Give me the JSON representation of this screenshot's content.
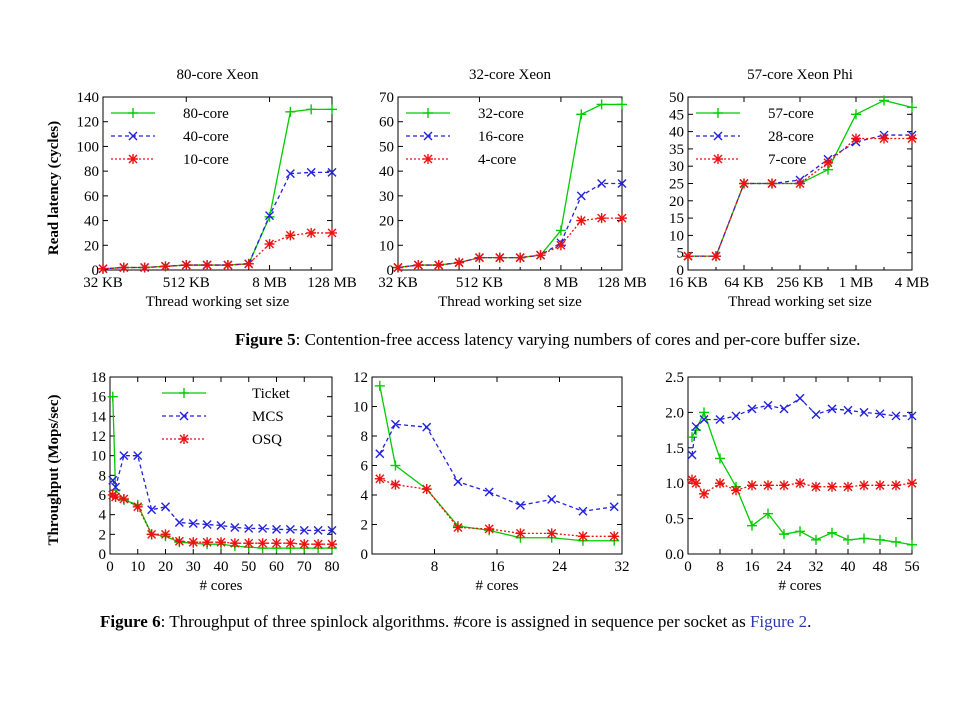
{
  "figure5": {
    "caption_label": "Figure 5",
    "caption_text": ": Contention-free access latency varying numbers of cores and per-core buffer size.",
    "ylabel": "Read latency (cycles)"
  },
  "figure6": {
    "caption_label": "Figure 6",
    "caption_text": ": Throughput of three spinlock algorithms. #core is assigned in sequence per socket as ",
    "caption_link": "Figure 2",
    "caption_end": ".",
    "ylabel": "Throughput (Mops/sec)"
  },
  "colors": {
    "green": "#00cc00",
    "blue": "#2222dd",
    "red": "#ee1111"
  },
  "chart_data": [
    {
      "id": "f5a",
      "type": "line",
      "title": "80-core Xeon",
      "xlabel": "Thread working set size",
      "x": [
        1,
        2,
        3,
        4,
        5,
        6,
        7,
        8,
        9,
        10,
        11,
        12
      ],
      "xticks": [
        1,
        5,
        9,
        12
      ],
      "xticklabels": [
        "32 KB",
        "512 KB",
        "8 MB",
        "128 MB"
      ],
      "xlim": [
        1,
        12
      ],
      "ylim": [
        0,
        140
      ],
      "yticks": [
        0,
        20,
        40,
        60,
        80,
        100,
        120,
        140
      ],
      "legend_position": "top-left",
      "series": [
        {
          "name": "80-core",
          "color": "green",
          "marker": "plus",
          "values": [
            1,
            2,
            2,
            3,
            4,
            4,
            4,
            5,
            43,
            128,
            130,
            130
          ]
        },
        {
          "name": "40-core",
          "color": "blue",
          "marker": "x",
          "values": [
            1,
            2,
            2,
            3,
            4,
            4,
            4,
            5,
            44,
            78,
            79,
            79
          ]
        },
        {
          "name": "10-core",
          "color": "red",
          "marker": "star",
          "values": [
            1,
            2,
            2,
            3,
            4,
            4,
            4,
            5,
            21,
            28,
            30,
            30
          ]
        }
      ]
    },
    {
      "id": "f5b",
      "type": "line",
      "title": "32-core Xeon",
      "xlabel": "Thread working set size",
      "x": [
        1,
        2,
        3,
        4,
        5,
        6,
        7,
        8,
        9,
        10,
        11,
        12
      ],
      "xticks": [
        1,
        5,
        9,
        12
      ],
      "xticklabels": [
        "32 KB",
        "512 KB",
        "8 MB",
        "128 MB"
      ],
      "xlim": [
        1,
        12
      ],
      "ylim": [
        0,
        70
      ],
      "yticks": [
        0,
        10,
        20,
        30,
        40,
        50,
        60,
        70
      ],
      "legend_position": "top-left",
      "series": [
        {
          "name": "32-core",
          "color": "green",
          "marker": "plus",
          "values": [
            1,
            2,
            2,
            3,
            5,
            5,
            5,
            6,
            16,
            63,
            67,
            67
          ]
        },
        {
          "name": "16-core",
          "color": "blue",
          "marker": "x",
          "values": [
            1,
            2,
            2,
            3,
            5,
            5,
            5,
            6,
            11,
            30,
            35,
            35
          ]
        },
        {
          "name": "4-core",
          "color": "red",
          "marker": "star",
          "values": [
            1,
            2,
            2,
            3,
            5,
            5,
            5,
            6,
            10,
            20,
            21,
            21
          ]
        }
      ]
    },
    {
      "id": "f5c",
      "type": "line",
      "title": "57-core Xeon Phi",
      "xlabel": "Thread working set size",
      "x": [
        1,
        2,
        3,
        4,
        5,
        6,
        7,
        8,
        9
      ],
      "xticks": [
        1,
        3,
        5,
        7,
        9
      ],
      "xticklabels": [
        "16 KB",
        "64 KB",
        "256 KB",
        "1 MB",
        "4 MB"
      ],
      "xlim": [
        1,
        9
      ],
      "ylim": [
        0,
        50
      ],
      "yticks": [
        0,
        5,
        10,
        15,
        20,
        25,
        30,
        35,
        40,
        45,
        50
      ],
      "legend_position": "top-left",
      "series": [
        {
          "name": "57-core",
          "color": "green",
          "marker": "plus",
          "values": [
            4,
            4,
            25,
            25,
            25,
            29,
            45,
            49,
            47
          ]
        },
        {
          "name": "28-core",
          "color": "blue",
          "marker": "x",
          "values": [
            4,
            4,
            25,
            25,
            26,
            32,
            37,
            39,
            39
          ]
        },
        {
          "name": "7-core",
          "color": "red",
          "marker": "star",
          "values": [
            4,
            4,
            25,
            25,
            25,
            31,
            38,
            38,
            38
          ]
        }
      ]
    },
    {
      "id": "f6a",
      "type": "line",
      "title": "",
      "xlabel": "# cores",
      "xlim": [
        0,
        80
      ],
      "ylim": [
        0,
        18
      ],
      "yticks": [
        0,
        2,
        4,
        6,
        8,
        10,
        12,
        14,
        16,
        18
      ],
      "xticks": [
        0,
        10,
        20,
        30,
        40,
        50,
        60,
        70,
        80
      ],
      "legend_position": "top-right",
      "series": [
        {
          "name": "Ticket",
          "color": "green",
          "marker": "plus",
          "x": [
            1,
            2,
            5,
            10,
            15,
            20,
            25,
            30,
            35,
            40,
            45,
            50,
            55,
            60,
            65,
            70,
            75,
            80
          ],
          "values": [
            16,
            6.5,
            5.5,
            5,
            2,
            1.8,
            1.2,
            1.1,
            1,
            1,
            0.8,
            0.7,
            0.6,
            0.6,
            0.6,
            0.6,
            0.6,
            0.6
          ]
        },
        {
          "name": "MCS",
          "color": "blue",
          "marker": "x",
          "x": [
            1,
            2,
            5,
            10,
            15,
            20,
            25,
            30,
            35,
            40,
            45,
            50,
            55,
            60,
            65,
            70,
            75,
            80
          ],
          "values": [
            7.5,
            6.8,
            10,
            10,
            4.5,
            4.8,
            3.2,
            3.1,
            3,
            2.9,
            2.7,
            2.6,
            2.6,
            2.5,
            2.5,
            2.4,
            2.4,
            2.4
          ]
        },
        {
          "name": "OSQ",
          "color": "red",
          "marker": "star",
          "x": [
            1,
            2,
            5,
            10,
            15,
            20,
            25,
            30,
            35,
            40,
            45,
            50,
            55,
            60,
            65,
            70,
            75,
            80
          ],
          "values": [
            6,
            5.8,
            5.6,
            4.8,
            2,
            2,
            1.3,
            1.2,
            1.2,
            1.2,
            1.1,
            1.1,
            1.1,
            1.1,
            1.1,
            1,
            1,
            1
          ]
        }
      ]
    },
    {
      "id": "f6b",
      "type": "line",
      "title": "",
      "xlabel": "# cores",
      "xlim": [
        0,
        32
      ],
      "ylim": [
        0,
        12
      ],
      "yticks": [
        0,
        2,
        4,
        6,
        8,
        10,
        12
      ],
      "xticks": [
        0,
        8,
        16,
        24,
        32
      ],
      "xticklabels": [
        "",
        "8",
        "16",
        "24",
        "32"
      ],
      "legend_position": "none",
      "series": [
        {
          "name": "",
          "color": "green",
          "marker": "plus",
          "x": [
            1,
            3,
            7,
            11,
            15,
            19,
            23,
            27,
            31
          ],
          "values": [
            11.4,
            6,
            4.4,
            1.9,
            1.6,
            1.1,
            1.1,
            0.9,
            0.9
          ]
        },
        {
          "name": "",
          "color": "blue",
          "marker": "x",
          "x": [
            1,
            3,
            7,
            11,
            15,
            19,
            23,
            27,
            31
          ],
          "values": [
            6.8,
            8.8,
            8.6,
            4.9,
            4.2,
            3.3,
            3.7,
            2.9,
            3.2
          ]
        },
        {
          "name": "",
          "color": "red",
          "marker": "star",
          "x": [
            1,
            3,
            7,
            11,
            15,
            19,
            23,
            27,
            31
          ],
          "values": [
            5.1,
            4.7,
            4.4,
            1.8,
            1.7,
            1.4,
            1.4,
            1.2,
            1.2
          ]
        }
      ]
    },
    {
      "id": "f6c",
      "type": "line",
      "title": "",
      "xlabel": "# cores",
      "xlim": [
        0,
        56
      ],
      "ylim": [
        0,
        2.5
      ],
      "yticks": [
        0,
        0.5,
        1,
        1.5,
        2,
        2.5
      ],
      "yticklabels": [
        "0.0",
        "0.5",
        "1.0",
        "1.5",
        "2.0",
        "2.5"
      ],
      "xticks": [
        0,
        8,
        16,
        24,
        32,
        40,
        48,
        56
      ],
      "legend_position": "none",
      "series": [
        {
          "name": "",
          "color": "green",
          "marker": "plus",
          "x": [
            1,
            2,
            4,
            8,
            12,
            16,
            20,
            24,
            28,
            32,
            36,
            40,
            44,
            48,
            52,
            56
          ],
          "values": [
            1.65,
            1.75,
            2,
            1.35,
            0.95,
            0.4,
            0.57,
            0.28,
            0.32,
            0.2,
            0.3,
            0.2,
            0.22,
            0.2,
            0.17,
            0.13
          ]
        },
        {
          "name": "",
          "color": "blue",
          "marker": "x",
          "x": [
            1,
            2,
            4,
            8,
            12,
            16,
            20,
            24,
            28,
            32,
            36,
            40,
            44,
            48,
            52,
            56
          ],
          "values": [
            1.4,
            1.8,
            1.9,
            1.9,
            1.95,
            2.05,
            2.1,
            2.05,
            2.2,
            1.97,
            2.05,
            2.03,
            2,
            1.98,
            1.95,
            1.95
          ]
        },
        {
          "name": "",
          "color": "red",
          "marker": "star",
          "x": [
            1,
            2,
            4,
            8,
            12,
            16,
            20,
            24,
            28,
            32,
            36,
            40,
            44,
            48,
            52,
            56
          ],
          "values": [
            1.05,
            1,
            0.85,
            1,
            0.9,
            0.97,
            0.97,
            0.97,
            1,
            0.95,
            0.95,
            0.95,
            0.97,
            0.97,
            0.97,
            1
          ]
        }
      ]
    }
  ]
}
